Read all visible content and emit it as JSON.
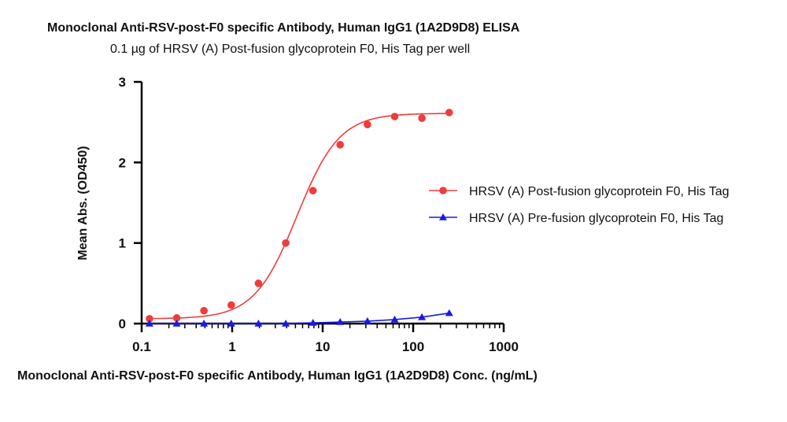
{
  "chart_data": {
    "type": "scatter",
    "title": "Monoclonal Anti-RSV-post-F0 specific Antibody, Human IgG1 (1A2D9D8) ELISA",
    "subtitle": "0.1 µg of HRSV (A) Post-fusion glycoprotein F0, His Tag per well",
    "xlabel": "Monoclonal Anti-RSV-post-F0 specific Antibody, Human IgG1 (1A2D9D8) Conc. (ng/mL)",
    "ylabel": "Mean Abs. (OD450)",
    "x_scale": "log",
    "xlim": [
      0.1,
      1000
    ],
    "ylim": [
      0,
      3
    ],
    "x_ticks": [
      0.1,
      1,
      10,
      100,
      1000
    ],
    "x_tick_labels": [
      "0.1",
      "1",
      "10",
      "100",
      "1000"
    ],
    "y_ticks": [
      0,
      1,
      2,
      3
    ],
    "y_tick_labels": [
      "0",
      "1",
      "2",
      "3"
    ],
    "grid": false,
    "legend_position": "right",
    "series": [
      {
        "name": "HRSV (A) Post-fusion glycoprotein F0, His Tag",
        "color": "#f03c3c",
        "marker": "circle",
        "x": [
          0.122,
          0.244,
          0.488,
          0.977,
          1.95,
          3.91,
          7.81,
          15.6,
          31.25,
          62.5,
          125,
          250
        ],
        "y": [
          0.06,
          0.07,
          0.16,
          0.23,
          0.5,
          1.0,
          1.65,
          2.22,
          2.47,
          2.57,
          2.55,
          2.62
        ],
        "fit": {
          "type": "4PL",
          "bottom": 0.06,
          "top": 2.61,
          "ec50": 5.2,
          "hill": 1.85
        }
      },
      {
        "name": "HRSV (A) Pre-fusion glycoprotein F0, His Tag",
        "color": "#1a1ae6",
        "marker": "triangle",
        "x": [
          0.122,
          0.244,
          0.488,
          0.977,
          1.95,
          3.91,
          7.81,
          15.6,
          31.25,
          62.5,
          125,
          250
        ],
        "y": [
          0.0,
          0.0,
          0.0,
          0.0,
          0.0,
          0.0,
          0.01,
          0.02,
          0.03,
          0.05,
          0.08,
          0.13
        ]
      }
    ]
  }
}
